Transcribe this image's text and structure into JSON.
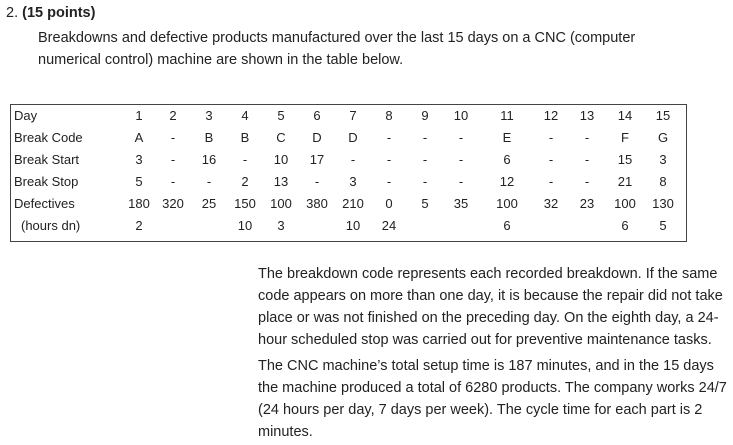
{
  "question": {
    "number": "2.",
    "points": "(15 points)",
    "intro": "Breakdowns and defective products manufactured over the last 15 days on a CNC (computer numerical control) machine are shown in the table below."
  },
  "table": {
    "row_labels": [
      "Day",
      "Break Code",
      "Break Start",
      "Break Stop",
      "Defectives",
      "(hours dn)"
    ],
    "rows": [
      [
        "1",
        "2",
        "3",
        "4",
        "5",
        "6",
        "7",
        "8",
        "9",
        "10",
        "11",
        "12",
        "13",
        "14",
        "15"
      ],
      [
        "A",
        "-",
        "B",
        "B",
        "C",
        "D",
        "D",
        "-",
        "-",
        "-",
        "E",
        "-",
        "-",
        "F",
        "G"
      ],
      [
        "3",
        "-",
        "16",
        "-",
        "10",
        "17",
        "-",
        "-",
        "-",
        "-",
        "6",
        "-",
        "-",
        "15",
        "3"
      ],
      [
        "5",
        "-",
        "-",
        "2",
        "13",
        "-",
        "3",
        "-",
        "-",
        "-",
        "12",
        "-",
        "-",
        "21",
        "8"
      ],
      [
        "180",
        "320",
        "25",
        "150",
        "100",
        "380",
        "210",
        "0",
        "5",
        "35",
        "100",
        "32",
        "23",
        "100",
        "130"
      ],
      [
        "2",
        "",
        "",
        "10",
        "3",
        "",
        "10",
        "24",
        "",
        "",
        "6",
        "",
        "",
        "6",
        "5"
      ]
    ]
  },
  "paragraphs": [
    "The breakdown code represents each recorded breakdown.  If the same code appears on more than one day, it is because the repair did not take place or was not finished on the preceding day.  On the eighth day, a 24-hour scheduled stop was carried out for preventive maintenance tasks.",
    "The CNC machine’s total setup time is 187 minutes, and in the 15 days the machine produced a total of 6280 products.  The company works 24/7 (24 hours per day, 7 days per week).  The cycle time for each part is 2 minutes."
  ]
}
